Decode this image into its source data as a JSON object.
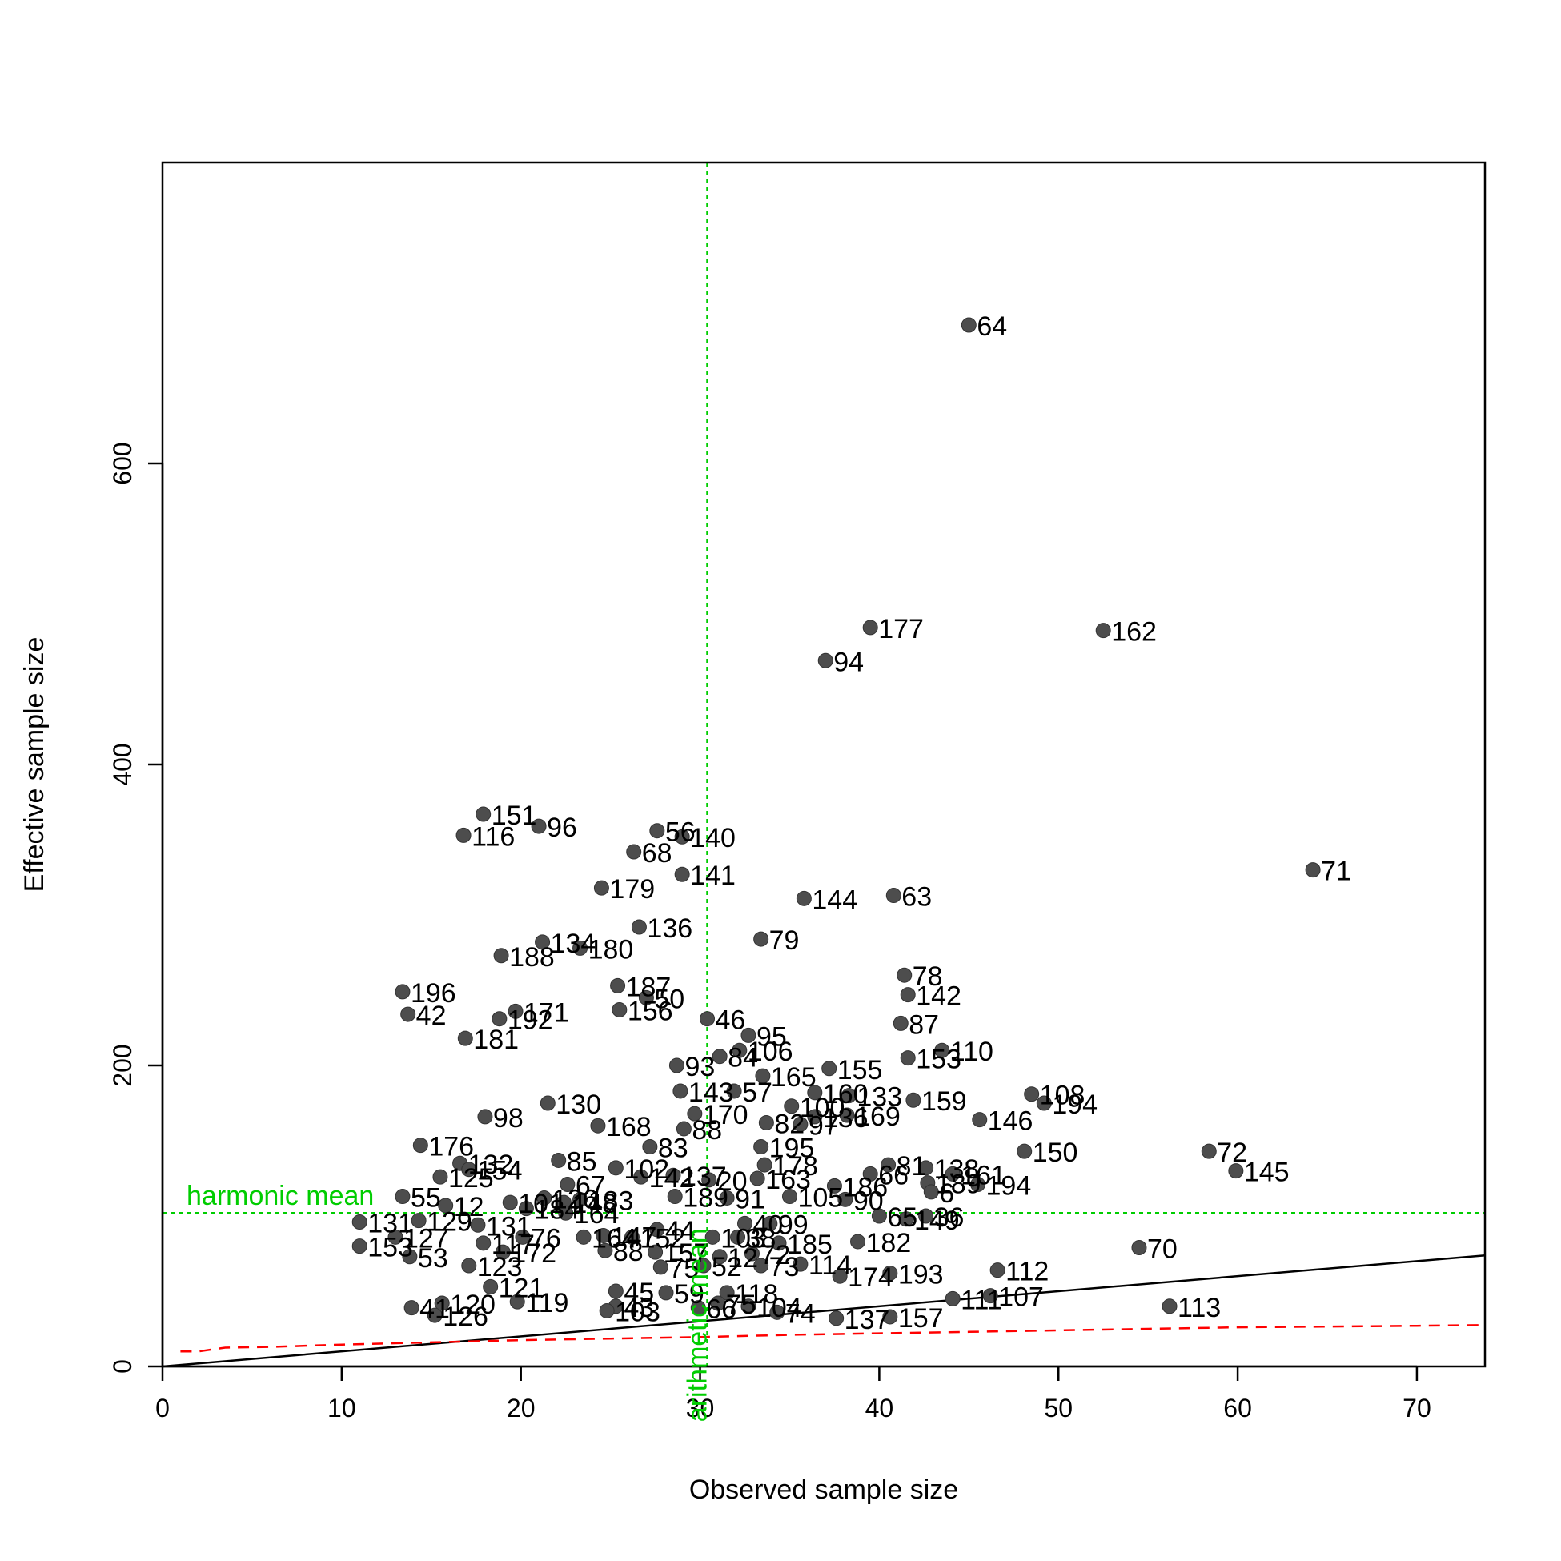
{
  "chart_data": {
    "type": "scatter",
    "title": "",
    "xlabel": "Observed sample size",
    "ylabel": "Effective sample size",
    "xlim": [
      0,
      73.8
    ],
    "ylim": [
      0,
      800
    ],
    "xticks": [
      0,
      10,
      20,
      30,
      40,
      50,
      60,
      70
    ],
    "yticks": [
      0,
      200,
      400,
      600
    ],
    "grid": false,
    "point_color": "#4d4d4d",
    "reference_color": "#00cd00",
    "overlay_color": "#ff0000",
    "reference_lines": {
      "harmonic_mean": {
        "label": "harmonic mean",
        "y": 102
      },
      "arithmetic_mean": {
        "label": "arithmetic mean",
        "x": 30.4
      }
    },
    "identity_line": {
      "from": [
        0,
        0
      ],
      "to": [
        73.8,
        73.8
      ]
    },
    "threshold_curve": {
      "x": [
        1,
        2,
        3.5,
        6,
        10,
        15,
        20,
        25,
        30,
        35,
        40,
        45,
        50,
        55,
        60,
        65,
        70,
        73.8
      ],
      "y": [
        10,
        10,
        12.5,
        13,
        14.5,
        16,
        17.5,
        18.5,
        19.5,
        21,
        22,
        23,
        24,
        25,
        26,
        26.5,
        27,
        27.5
      ]
    },
    "points": [
      {
        "x": 45,
        "y": 692,
        "label": "64"
      },
      {
        "x": 39.5,
        "y": 491,
        "label": "177"
      },
      {
        "x": 52.5,
        "y": 489,
        "label": "162"
      },
      {
        "x": 37,
        "y": 469,
        "label": "94"
      },
      {
        "x": 64.2,
        "y": 330,
        "label": "71"
      },
      {
        "x": 17.9,
        "y": 367,
        "label": "151"
      },
      {
        "x": 21,
        "y": 359,
        "label": "96"
      },
      {
        "x": 16.8,
        "y": 353,
        "label": "116"
      },
      {
        "x": 27.6,
        "y": 356,
        "label": "56"
      },
      {
        "x": 29,
        "y": 352,
        "label": "140"
      },
      {
        "x": 26.3,
        "y": 342,
        "label": "68"
      },
      {
        "x": 29,
        "y": 327,
        "label": "141"
      },
      {
        "x": 24.5,
        "y": 318,
        "label": "179"
      },
      {
        "x": 35.8,
        "y": 311,
        "label": "144"
      },
      {
        "x": 40.8,
        "y": 313,
        "label": "63"
      },
      {
        "x": 26.6,
        "y": 292,
        "label": "136"
      },
      {
        "x": 33.4,
        "y": 284,
        "label": "79"
      },
      {
        "x": 21.2,
        "y": 282,
        "label": "134"
      },
      {
        "x": 23.3,
        "y": 278,
        "label": "180"
      },
      {
        "x": 18.9,
        "y": 273,
        "label": "188"
      },
      {
        "x": 41.4,
        "y": 260,
        "label": "78"
      },
      {
        "x": 13.4,
        "y": 249,
        "label": "196"
      },
      {
        "x": 25.4,
        "y": 253,
        "label": "187"
      },
      {
        "x": 27,
        "y": 245,
        "label": "50"
      },
      {
        "x": 41.6,
        "y": 247,
        "label": "142"
      },
      {
        "x": 13.7,
        "y": 234,
        "label": "42"
      },
      {
        "x": 19.7,
        "y": 236,
        "label": "171"
      },
      {
        "x": 18.8,
        "y": 231,
        "label": "192"
      },
      {
        "x": 25.5,
        "y": 237,
        "label": "156"
      },
      {
        "x": 30.4,
        "y": 231,
        "label": "46"
      },
      {
        "x": 41.2,
        "y": 228,
        "label": "87"
      },
      {
        "x": 16.9,
        "y": 218,
        "label": "181"
      },
      {
        "x": 32.7,
        "y": 220,
        "label": "95"
      },
      {
        "x": 32.2,
        "y": 210,
        "label": "106"
      },
      {
        "x": 43.5,
        "y": 210,
        "label": "110"
      },
      {
        "x": 31.1,
        "y": 206,
        "label": "84"
      },
      {
        "x": 41.6,
        "y": 205,
        "label": "153"
      },
      {
        "x": 28.7,
        "y": 200,
        "label": "93"
      },
      {
        "x": 37.2,
        "y": 198,
        "label": "155"
      },
      {
        "x": 33.5,
        "y": 193,
        "label": "165"
      },
      {
        "x": 31.9,
        "y": 183,
        "label": "57"
      },
      {
        "x": 28.9,
        "y": 183,
        "label": "143"
      },
      {
        "x": 36.4,
        "y": 182,
        "label": "160"
      },
      {
        "x": 38.3,
        "y": 180,
        "label": "133"
      },
      {
        "x": 48.5,
        "y": 181,
        "label": "108"
      },
      {
        "x": 49.2,
        "y": 175,
        "label": "194"
      },
      {
        "x": 41.9,
        "y": 177,
        "label": "159"
      },
      {
        "x": 21.5,
        "y": 175,
        "label": "130"
      },
      {
        "x": 35.1,
        "y": 173,
        "label": "100"
      },
      {
        "x": 29.7,
        "y": 168,
        "label": "170"
      },
      {
        "x": 36.4,
        "y": 166,
        "label": "136"
      },
      {
        "x": 38.2,
        "y": 167,
        "label": "169"
      },
      {
        "x": 18,
        "y": 166,
        "label": "98"
      },
      {
        "x": 45.6,
        "y": 164,
        "label": "146"
      },
      {
        "x": 33.7,
        "y": 162,
        "label": "82"
      },
      {
        "x": 35.6,
        "y": 161,
        "label": "97"
      },
      {
        "x": 24.3,
        "y": 160,
        "label": "168"
      },
      {
        "x": 29.1,
        "y": 158,
        "label": "88"
      },
      {
        "x": 14.4,
        "y": 147,
        "label": "176"
      },
      {
        "x": 27.2,
        "y": 146,
        "label": "83"
      },
      {
        "x": 33.4,
        "y": 146,
        "label": "195"
      },
      {
        "x": 48.1,
        "y": 143,
        "label": "150"
      },
      {
        "x": 58.4,
        "y": 143,
        "label": "72"
      },
      {
        "x": 16.6,
        "y": 135,
        "label": "132"
      },
      {
        "x": 22.1,
        "y": 137,
        "label": "85"
      },
      {
        "x": 33.6,
        "y": 134,
        "label": "178"
      },
      {
        "x": 59.9,
        "y": 130,
        "label": "145"
      },
      {
        "x": 17.1,
        "y": 131,
        "label": "154"
      },
      {
        "x": 40.5,
        "y": 134,
        "label": "81"
      },
      {
        "x": 42.6,
        "y": 132,
        "label": "138"
      },
      {
        "x": 15.5,
        "y": 126,
        "label": "125"
      },
      {
        "x": 25.3,
        "y": 132,
        "label": "102"
      },
      {
        "x": 44.1,
        "y": 128,
        "label": "161"
      },
      {
        "x": 28.5,
        "y": 127,
        "label": "137"
      },
      {
        "x": 26.7,
        "y": 126,
        "label": "142"
      },
      {
        "x": 39.5,
        "y": 128,
        "label": "66"
      },
      {
        "x": 33.2,
        "y": 125,
        "label": "163"
      },
      {
        "x": 30.5,
        "y": 124,
        "label": "20"
      },
      {
        "x": 42.7,
        "y": 122,
        "label": "189"
      },
      {
        "x": 45.5,
        "y": 121,
        "label": "194"
      },
      {
        "x": 22.6,
        "y": 121,
        "label": "67"
      },
      {
        "x": 37.5,
        "y": 120,
        "label": "186"
      },
      {
        "x": 42.9,
        "y": 116,
        "label": "6"
      },
      {
        "x": 13.4,
        "y": 113,
        "label": "55"
      },
      {
        "x": 35,
        "y": 113,
        "label": "105"
      },
      {
        "x": 28.6,
        "y": 113,
        "label": "189"
      },
      {
        "x": 31.5,
        "y": 112,
        "label": "91"
      },
      {
        "x": 21.3,
        "y": 112,
        "label": "126"
      },
      {
        "x": 23.3,
        "y": 111,
        "label": "183"
      },
      {
        "x": 38.1,
        "y": 111,
        "label": "90"
      },
      {
        "x": 19.4,
        "y": 109,
        "label": "101"
      },
      {
        "x": 22.4,
        "y": 109,
        "label": "148"
      },
      {
        "x": 15.8,
        "y": 107,
        "label": "12"
      },
      {
        "x": 20.3,
        "y": 105,
        "label": "184"
      },
      {
        "x": 22.5,
        "y": 102,
        "label": "164"
      },
      {
        "x": 40,
        "y": 100,
        "label": "65"
      },
      {
        "x": 42.6,
        "y": 100,
        "label": "36"
      },
      {
        "x": 41.5,
        "y": 98,
        "label": "149"
      },
      {
        "x": 11,
        "y": 96,
        "label": "131"
      },
      {
        "x": 14.3,
        "y": 97,
        "label": "129"
      },
      {
        "x": 17.6,
        "y": 94,
        "label": "131"
      },
      {
        "x": 33.9,
        "y": 95,
        "label": "99"
      },
      {
        "x": 32.5,
        "y": 95,
        "label": "40"
      },
      {
        "x": 27.6,
        "y": 91,
        "label": "44"
      },
      {
        "x": 24.6,
        "y": 87,
        "label": "147"
      },
      {
        "x": 26.2,
        "y": 86,
        "label": "152"
      },
      {
        "x": 30.7,
        "y": 86,
        "label": "103"
      },
      {
        "x": 32.1,
        "y": 86,
        "label": "38"
      },
      {
        "x": 20.1,
        "y": 86,
        "label": "76"
      },
      {
        "x": 13,
        "y": 86,
        "label": "127"
      },
      {
        "x": 23.5,
        "y": 86,
        "label": "164"
      },
      {
        "x": 34.4,
        "y": 82,
        "label": "185"
      },
      {
        "x": 38.8,
        "y": 83,
        "label": "182"
      },
      {
        "x": 11,
        "y": 80,
        "label": "153"
      },
      {
        "x": 17.9,
        "y": 82,
        "label": "117"
      },
      {
        "x": 54.5,
        "y": 79,
        "label": "70"
      },
      {
        "x": 24.7,
        "y": 77,
        "label": "88"
      },
      {
        "x": 27.5,
        "y": 76,
        "label": "157"
      },
      {
        "x": 19,
        "y": 76,
        "label": "172"
      },
      {
        "x": 32.9,
        "y": 75,
        "label": "72"
      },
      {
        "x": 13.8,
        "y": 73,
        "label": "53"
      },
      {
        "x": 31.1,
        "y": 73,
        "label": "12"
      },
      {
        "x": 17.1,
        "y": 67,
        "label": "123"
      },
      {
        "x": 27.8,
        "y": 66,
        "label": "75"
      },
      {
        "x": 30.2,
        "y": 67,
        "label": "52"
      },
      {
        "x": 33.4,
        "y": 67,
        "label": "73"
      },
      {
        "x": 35.6,
        "y": 68,
        "label": "114"
      },
      {
        "x": 46.6,
        "y": 64,
        "label": "112"
      },
      {
        "x": 37.8,
        "y": 60,
        "label": "174"
      },
      {
        "x": 40.6,
        "y": 62,
        "label": "193"
      },
      {
        "x": 18.3,
        "y": 53,
        "label": "121"
      },
      {
        "x": 25.3,
        "y": 50,
        "label": "45"
      },
      {
        "x": 28.1,
        "y": 49,
        "label": "59"
      },
      {
        "x": 31.5,
        "y": 49,
        "label": "118"
      },
      {
        "x": 44.1,
        "y": 45,
        "label": "111"
      },
      {
        "x": 46.2,
        "y": 47,
        "label": "107"
      },
      {
        "x": 19.8,
        "y": 43,
        "label": "119"
      },
      {
        "x": 15.6,
        "y": 42,
        "label": "120"
      },
      {
        "x": 13.9,
        "y": 39,
        "label": "41"
      },
      {
        "x": 31,
        "y": 42,
        "label": "75"
      },
      {
        "x": 32.7,
        "y": 40,
        "label": "104"
      },
      {
        "x": 56.2,
        "y": 40,
        "label": "113"
      },
      {
        "x": 25.3,
        "y": 40,
        "label": "43"
      },
      {
        "x": 24.8,
        "y": 37,
        "label": "103"
      },
      {
        "x": 34.3,
        "y": 36,
        "label": "74"
      },
      {
        "x": 15.2,
        "y": 34,
        "label": "126"
      },
      {
        "x": 37.6,
        "y": 32,
        "label": "137"
      },
      {
        "x": 40.6,
        "y": 33,
        "label": "157"
      },
      {
        "x": 29.9,
        "y": 39,
        "label": "66"
      }
    ]
  }
}
